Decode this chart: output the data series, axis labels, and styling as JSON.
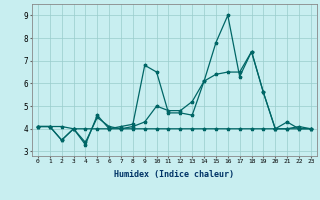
{
  "xlabel": "Humidex (Indice chaleur)",
  "background_color": "#c8eef0",
  "grid_color": "#99cccc",
  "line_color": "#006666",
  "xlim": [
    -0.5,
    23.5
  ],
  "ylim": [
    2.8,
    9.5
  ],
  "yticks": [
    3,
    4,
    5,
    6,
    7,
    8,
    9
  ],
  "xticks": [
    0,
    1,
    2,
    3,
    4,
    5,
    6,
    7,
    8,
    9,
    10,
    11,
    12,
    13,
    14,
    15,
    16,
    17,
    18,
    19,
    20,
    21,
    22,
    23
  ],
  "series1_x": [
    0,
    1,
    2,
    3,
    4,
    5,
    6,
    7,
    8,
    9,
    10,
    11,
    12,
    13,
    14,
    15,
    16,
    17,
    18,
    19,
    20,
    21,
    22,
    23
  ],
  "series1_y": [
    4.1,
    4.1,
    4.1,
    4.0,
    4.0,
    4.0,
    4.0,
    4.0,
    4.0,
    4.0,
    4.0,
    4.0,
    4.0,
    4.0,
    4.0,
    4.0,
    4.0,
    4.0,
    4.0,
    4.0,
    4.0,
    4.0,
    4.0,
    4.0
  ],
  "series2_x": [
    0,
    1,
    2,
    3,
    4,
    5,
    6,
    7,
    8,
    9,
    10,
    11,
    12,
    13,
    14,
    15,
    16,
    17,
    18,
    19,
    20,
    21,
    22,
    23
  ],
  "series2_y": [
    4.1,
    4.1,
    3.5,
    4.0,
    3.3,
    4.6,
    4.0,
    4.1,
    4.2,
    6.8,
    6.5,
    4.7,
    4.7,
    4.6,
    6.1,
    7.8,
    9.0,
    6.3,
    7.4,
    5.6,
    4.0,
    4.3,
    4.0,
    4.0
  ],
  "series3_x": [
    0,
    1,
    2,
    3,
    4,
    5,
    6,
    7,
    8,
    9,
    10,
    11,
    12,
    13,
    14,
    15,
    16,
    17,
    18,
    19,
    20,
    21,
    22,
    23
  ],
  "series3_y": [
    4.1,
    4.1,
    3.5,
    4.0,
    3.4,
    4.5,
    4.1,
    4.0,
    4.1,
    4.3,
    5.0,
    4.8,
    4.8,
    5.2,
    6.1,
    6.4,
    6.5,
    6.5,
    7.4,
    5.6,
    4.0,
    4.0,
    4.1,
    4.0
  ]
}
